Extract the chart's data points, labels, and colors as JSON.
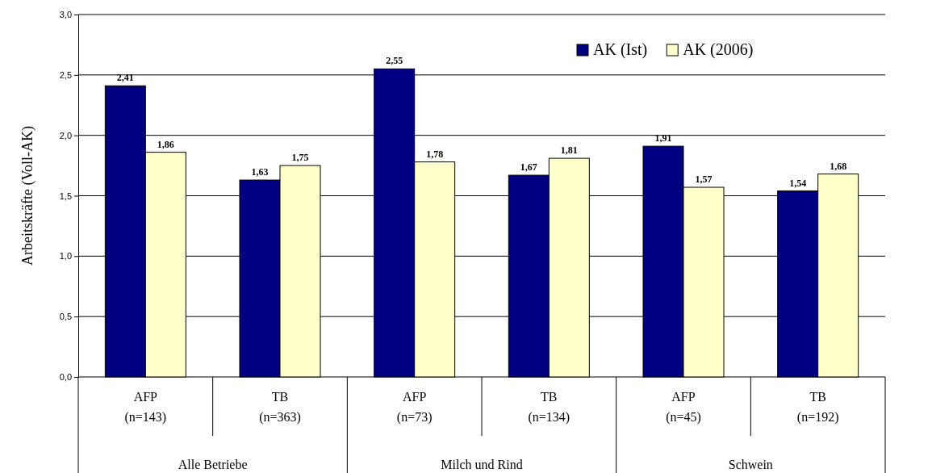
{
  "chart_data": {
    "type": "bar",
    "ylabel": "Arbeitskräfte (Voll-AK)",
    "categories": [
      "AFP\n(n=143)",
      "TB\n(n=363)",
      "AFP\n(n=73)",
      "TB\n(n=134)",
      "AFP\n(n=45)",
      "TB\n(n=192)"
    ],
    "series": [
      {
        "name": "AK (Ist)",
        "color": "#000080",
        "values": [
          2.41,
          1.63,
          2.55,
          1.67,
          1.91,
          1.54
        ],
        "value_labels": [
          "2,41",
          "1,63",
          "2,55",
          "1,67",
          "1,91",
          "1,54"
        ]
      },
      {
        "name": "AK (2006)",
        "color": "#ffffcc",
        "values": [
          1.86,
          1.75,
          1.78,
          1.81,
          1.57,
          1.68
        ],
        "value_labels": [
          "1,86",
          "1,75",
          "1,78",
          "1,81",
          "1,57",
          "1,68"
        ]
      }
    ],
    "annotations": [
      "Alle Betriebe",
      "Milch und Rind",
      "Schwein"
    ],
    "ylim": [
      0,
      3
    ],
    "yticks": [
      {
        "value": 0,
        "label": "0,0"
      },
      {
        "value": 0.5,
        "label": "0,5"
      },
      {
        "value": 1,
        "label": "1,0"
      },
      {
        "value": 1.5,
        "label": "1,5"
      },
      {
        "value": 2,
        "label": "2,0"
      },
      {
        "value": 2.5,
        "label": "2,5"
      },
      {
        "value": 3,
        "label": "3,0"
      }
    ],
    "grid": "y",
    "legend": "top right"
  }
}
